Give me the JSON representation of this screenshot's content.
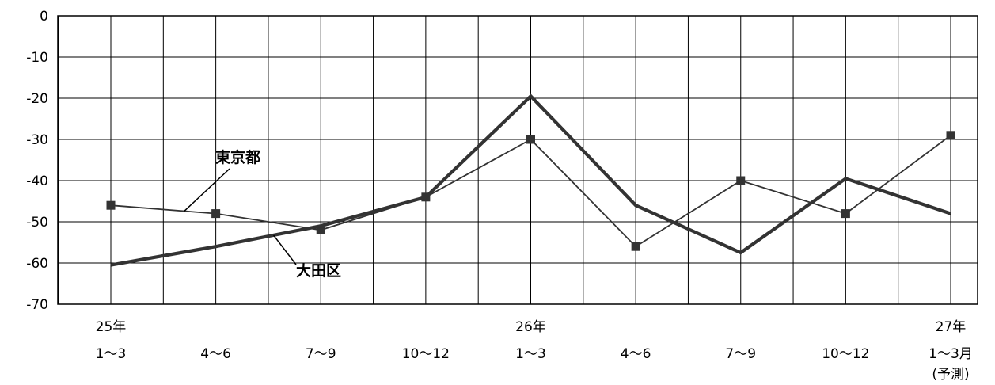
{
  "chart_data": {
    "type": "line",
    "categories": [
      [
        "25年",
        "1〜3",
        ""
      ],
      [
        "",
        "4〜6",
        ""
      ],
      [
        "",
        "7〜9",
        ""
      ],
      [
        "",
        "10〜12",
        ""
      ],
      [
        "26年",
        "1〜3",
        ""
      ],
      [
        "",
        "4〜6",
        ""
      ],
      [
        "",
        "7〜9",
        ""
      ],
      [
        "",
        "10〜12",
        ""
      ],
      [
        "27年",
        "1〜3月",
        "(予測)"
      ]
    ],
    "series": [
      {
        "name": "東京都",
        "values": [
          -46,
          -48,
          -52,
          -44,
          -30,
          -56,
          -40,
          -48,
          -29
        ],
        "marker": "square",
        "color": "#333333"
      },
      {
        "name": "大田区",
        "values": [
          -60.5,
          -56,
          -51,
          -44,
          -19.5,
          -46,
          -57.5,
          -39.5,
          -48
        ],
        "marker": "none",
        "color": "#333333"
      }
    ],
    "ylim": [
      -70,
      0
    ],
    "yticks": [
      0,
      -10,
      -20,
      -30,
      -40,
      -50,
      -60,
      -70
    ],
    "grid": true,
    "title": "",
    "xlabel": "",
    "ylabel": ""
  }
}
